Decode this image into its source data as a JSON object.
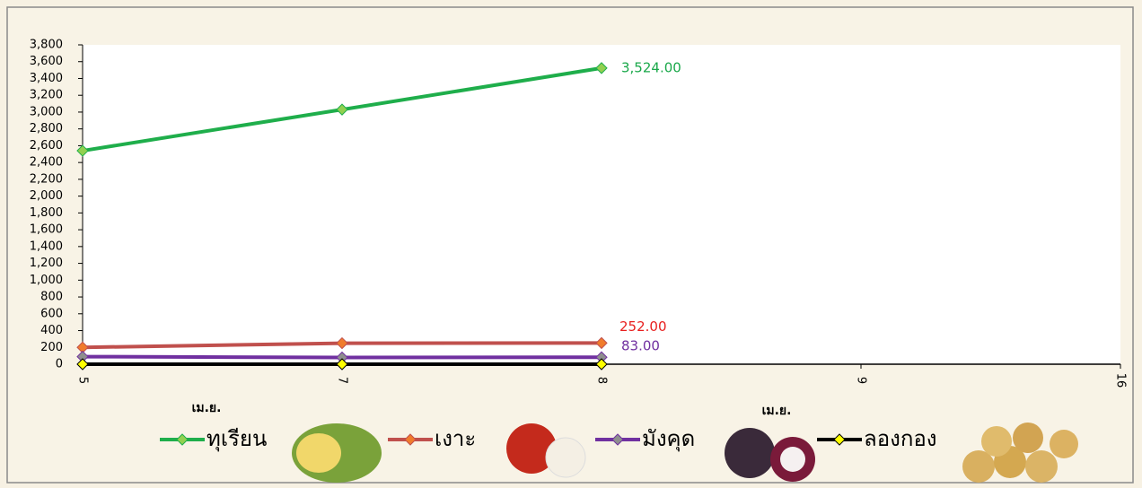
{
  "chart_data": {
    "type": "line",
    "categories": [
      "5",
      "7",
      "8",
      "9",
      "16"
    ],
    "annotations": [
      "เม.ย.",
      "เม.ย."
    ],
    "series": [
      {
        "name": "ทุเรียน",
        "color": "#1fae4b",
        "marker_color": "#92d050",
        "label_color": "#1aa84a",
        "values": [
          2540,
          3030,
          3524,
          null,
          null
        ],
        "value_labels": [
          null,
          null,
          "3,524.00",
          null,
          null
        ]
      },
      {
        "name": "เงาะ",
        "color": "#c0504d",
        "marker_color": "#f07c2c",
        "label_color": "#e8201f",
        "values": [
          200,
          250,
          252,
          null,
          null
        ],
        "value_labels": [
          null,
          null,
          "252.00",
          null,
          null
        ]
      },
      {
        "name": "มังคุด",
        "color": "#7030a0",
        "marker_color": "#8e8e8e",
        "label_color": "#7030a0",
        "values": [
          90,
          80,
          83,
          null,
          null
        ],
        "value_labels": [
          null,
          null,
          "83.00",
          null,
          null
        ]
      },
      {
        "name": "ลองกอง",
        "color": "#000000",
        "marker_color": "#ffff00",
        "label_color": "#000000",
        "values": [
          0,
          0,
          0,
          null,
          null
        ]
      }
    ],
    "ylim": [
      0,
      3800
    ],
    "yticks": [
      0,
      200,
      400,
      600,
      800,
      {
        "value": 1000,
        "label": "1,000"
      },
      {
        "value": 1200,
        "label": "1,200"
      },
      {
        "value": 1400,
        "label": "1,400"
      },
      {
        "value": 1600,
        "label": "1,600"
      },
      {
        "value": 1800,
        "label": "1,800"
      },
      {
        "value": 2000,
        "label": "2,000"
      },
      {
        "value": 2200,
        "label": "2,200"
      },
      {
        "value": 2400,
        "label": "2,400"
      },
      {
        "value": 2600,
        "label": "2,600"
      },
      {
        "value": 2800,
        "label": "2,800"
      },
      {
        "value": 3000,
        "label": "3,000"
      },
      {
        "value": 3200,
        "label": "3,200"
      },
      {
        "value": 3400,
        "label": "3,400"
      },
      {
        "value": 3600,
        "label": "3,600"
      },
      {
        "value": 3800,
        "label": "3,800"
      }
    ],
    "grid": false
  }
}
